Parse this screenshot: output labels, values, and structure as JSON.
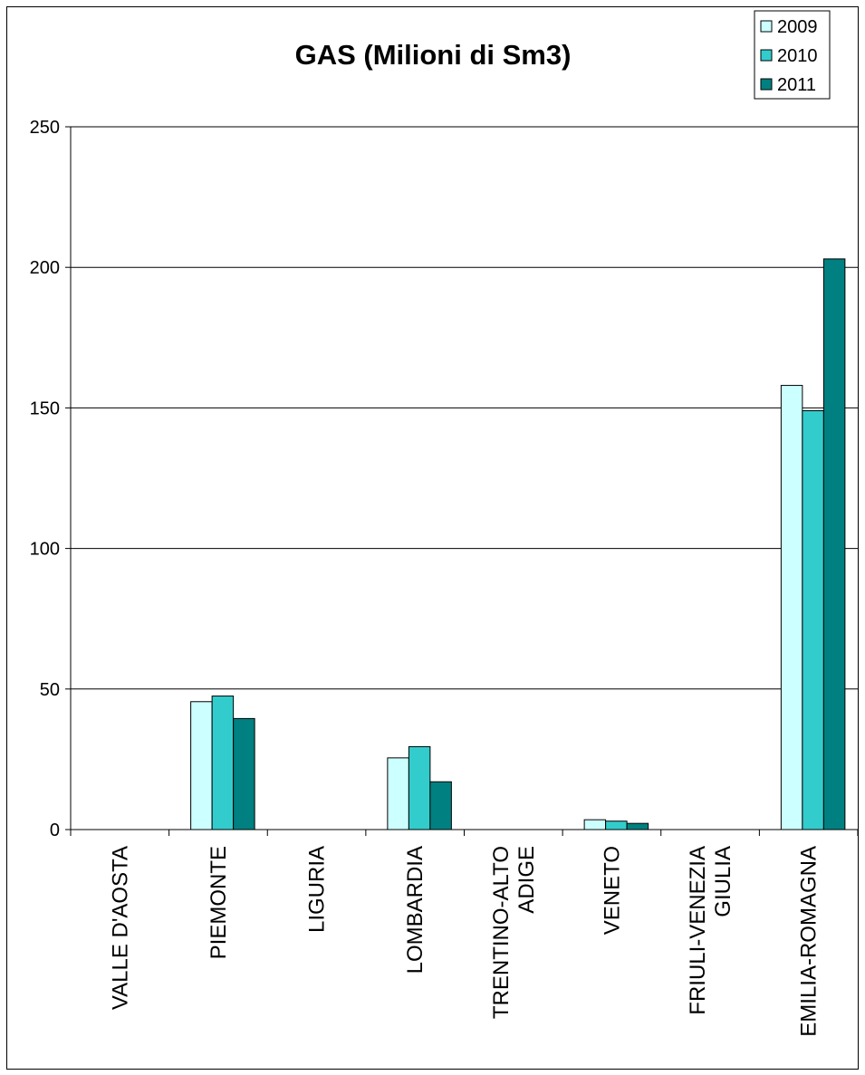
{
  "chart_data": {
    "type": "bar",
    "title": "GAS (Milioni di Sm3)",
    "xlabel": "",
    "ylabel": "",
    "ylim": [
      0,
      250
    ],
    "yticks": [
      0,
      50,
      100,
      150,
      200,
      250
    ],
    "grid": true,
    "legend_position": "top-right",
    "categories": [
      [
        "VALLE D'AOSTA"
      ],
      [
        "PIEMONTE"
      ],
      [
        "LIGURIA"
      ],
      [
        "LOMBARDIA"
      ],
      [
        "TRENTINO-ALTO",
        "ADIGE"
      ],
      [
        "VENETO"
      ],
      [
        "FRIULI-VENEZIA",
        "GIULIA"
      ],
      [
        "EMILIA-ROMAGNA"
      ]
    ],
    "series": [
      {
        "name": "2009",
        "color": "#ccffff",
        "values": [
          0,
          45.5,
          0,
          25.5,
          0,
          3.5,
          0,
          158
        ]
      },
      {
        "name": "2010",
        "color": "#33cccc",
        "values": [
          0,
          47.5,
          0,
          29.5,
          0,
          3,
          0,
          149
        ]
      },
      {
        "name": "2011",
        "color": "#008080",
        "values": [
          0,
          39.5,
          0,
          17,
          0,
          2.2,
          0,
          203
        ]
      }
    ]
  }
}
